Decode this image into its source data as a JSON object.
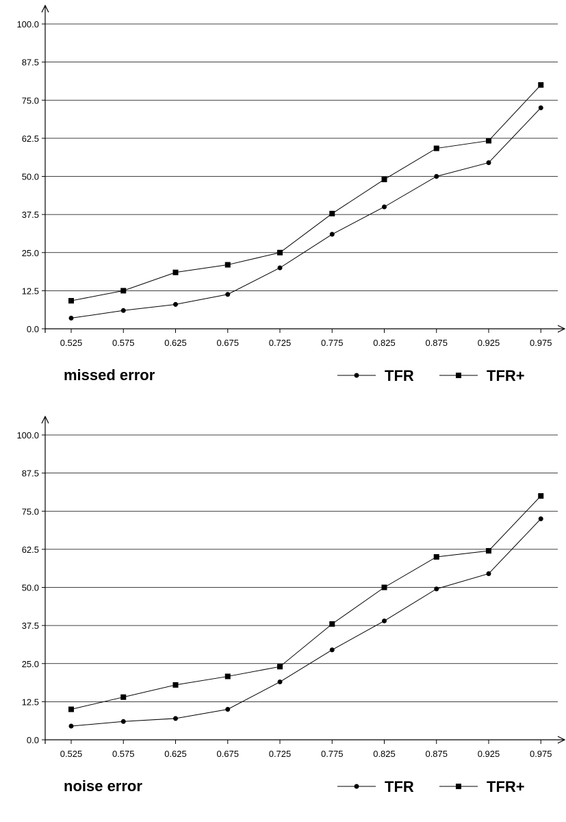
{
  "chart_data": [
    {
      "type": "line",
      "title": "missed error",
      "x": [
        0.525,
        0.575,
        0.625,
        0.675,
        0.725,
        0.775,
        0.825,
        0.875,
        0.925,
        0.975
      ],
      "x_tick_labels": [
        "0.525",
        "0.575",
        "0.625",
        "0.675",
        "0.725",
        "0.775",
        "0.825",
        "0.875",
        "0.925",
        "0.975"
      ],
      "y_tick_labels": [
        "0.0",
        "12.5",
        "25.0",
        "37.5",
        "50.0",
        "62.5",
        "75.0",
        "87.5",
        "100.0"
      ],
      "ylim": [
        0,
        100
      ],
      "grid": "horizontal",
      "legend_position": "bottom-right",
      "series": [
        {
          "name": "TFR",
          "marker": "circle",
          "values": [
            3.5,
            6.0,
            8.0,
            11.3,
            20.0,
            31.0,
            40.0,
            50.0,
            54.5,
            72.5
          ]
        },
        {
          "name": "TFR+",
          "marker": "square",
          "values": [
            9.2,
            12.5,
            18.5,
            21.0,
            25.0,
            37.8,
            49.0,
            59.2,
            61.7,
            80.0
          ]
        }
      ]
    },
    {
      "type": "line",
      "title": "noise error",
      "x": [
        0.525,
        0.575,
        0.625,
        0.675,
        0.725,
        0.775,
        0.825,
        0.875,
        0.925,
        0.975
      ],
      "x_tick_labels": [
        "0.525",
        "0.575",
        "0.625",
        "0.675",
        "0.725",
        "0.775",
        "0.825",
        "0.875",
        "0.925",
        "0.975"
      ],
      "y_tick_labels": [
        "0.0",
        "12.5",
        "25.0",
        "37.5",
        "50.0",
        "62.5",
        "75.0",
        "87.5",
        "100.0"
      ],
      "ylim": [
        0,
        100
      ],
      "grid": "horizontal",
      "legend_position": "bottom-right",
      "series": [
        {
          "name": "TFR",
          "marker": "circle",
          "values": [
            4.5,
            6.0,
            7.0,
            10.0,
            19.0,
            29.5,
            39.0,
            49.5,
            54.5,
            72.5
          ]
        },
        {
          "name": "TFR+",
          "marker": "square",
          "values": [
            10.0,
            14.0,
            18.0,
            20.8,
            24.0,
            38.0,
            50.0,
            60.0,
            62.0,
            80.0
          ]
        }
      ]
    }
  ]
}
